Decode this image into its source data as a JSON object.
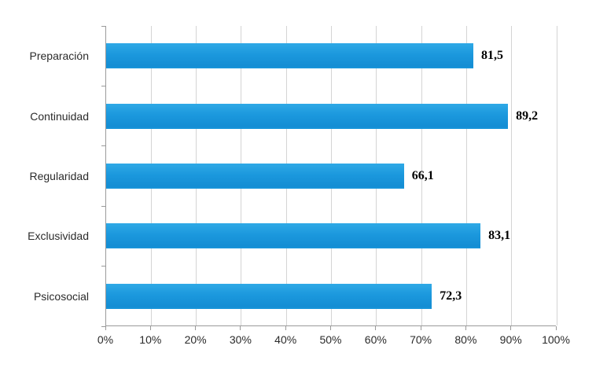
{
  "chart_data": {
    "type": "bar",
    "orientation": "horizontal",
    "title": "",
    "xlabel": "",
    "ylabel": "",
    "categories": [
      "Preparación",
      "Continuidad",
      "Regularidad",
      "Exclusividad",
      "Psicosocial"
    ],
    "values": [
      81.5,
      89.2,
      66.1,
      83.1,
      72.3
    ],
    "value_labels": [
      "81,5",
      "89,2",
      "66,1",
      "83,1",
      "72,3"
    ],
    "xlim": [
      0,
      100
    ],
    "x_tick_step": 10,
    "x_tick_labels": [
      "0%",
      "10%",
      "20%",
      "30%",
      "40%",
      "50%",
      "60%",
      "70%",
      "80%",
      "90%",
      "100%"
    ],
    "grid": "vertical",
    "legend": "none",
    "bar_color": "#1b98dd",
    "gridline_color": "#d4d4d4",
    "axis_color": "#9a9a9a"
  }
}
